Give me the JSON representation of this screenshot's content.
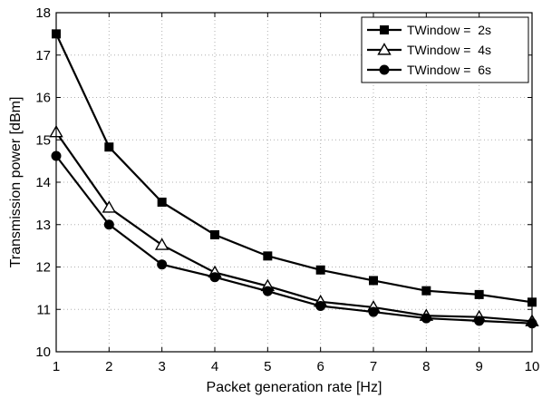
{
  "chart_data": {
    "type": "line",
    "title": "",
    "xlabel": "Packet generation rate [Hz]",
    "ylabel": "Transmission power [dBm]",
    "xlim": [
      1,
      10
    ],
    "ylim": [
      10,
      18
    ],
    "xticks": [
      "1",
      "2",
      "3",
      "4",
      "5",
      "6",
      "7",
      "8",
      "9",
      "10"
    ],
    "yticks": [
      "10",
      "11",
      "12",
      "13",
      "14",
      "15",
      "16",
      "17",
      "18"
    ],
    "grid": true,
    "legend_position": "top-right",
    "x": [
      1,
      2,
      3,
      4,
      5,
      6,
      7,
      8,
      9,
      10
    ],
    "series": [
      {
        "name": "TWindow =  2s",
        "marker": "square",
        "values": [
          17.5,
          14.83,
          13.53,
          12.76,
          12.26,
          11.93,
          11.68,
          11.44,
          11.35,
          11.17
        ]
      },
      {
        "name": "TWindow =  4s",
        "marker": "triangle",
        "values": [
          15.18,
          13.4,
          12.52,
          11.87,
          11.55,
          11.18,
          11.05,
          10.85,
          10.82,
          10.72
        ]
      },
      {
        "name": "TWindow =  6s",
        "marker": "circle",
        "values": [
          14.62,
          13.0,
          12.06,
          11.76,
          11.43,
          11.08,
          10.94,
          10.79,
          10.73,
          10.67
        ]
      }
    ]
  }
}
